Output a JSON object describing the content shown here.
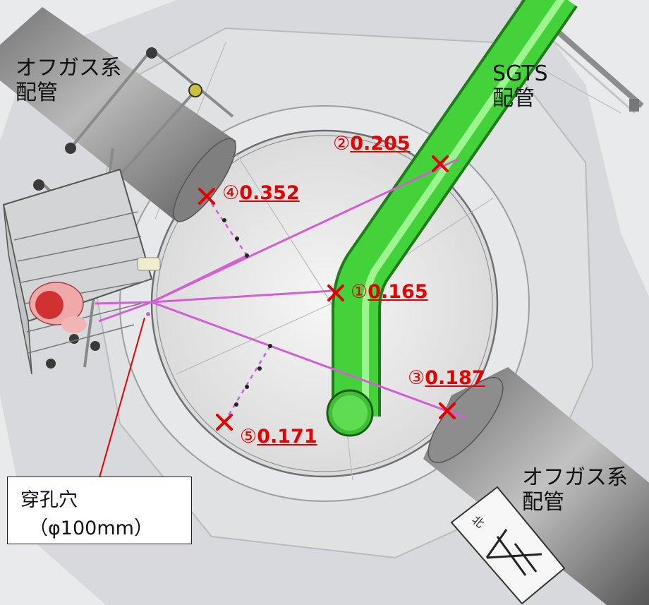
{
  "labels": {
    "offgas_top": [
      "オフガス系",
      "配管"
    ],
    "offgas_bottom": [
      "オフガス系",
      "配管"
    ],
    "sgts": [
      "SGTS",
      "配管"
    ]
  },
  "measurements": [
    {
      "mark": "①",
      "value": "0.165"
    },
    {
      "mark": "②",
      "value": "0.205"
    },
    {
      "mark": "③",
      "value": "0.187"
    },
    {
      "mark": "④",
      "value": "0.352"
    },
    {
      "mark": "⑤",
      "value": "0.171"
    }
  ],
  "callout": {
    "line1": "穿孔穴",
    "line2": "（φ100mm）"
  },
  "compass_glyph": "北",
  "colors": {
    "measure_red": "#e60000",
    "sight_line": "#d35fd6",
    "sgts_pipe": "#44d23a",
    "offgas_pipe": "#8c8c8c"
  }
}
